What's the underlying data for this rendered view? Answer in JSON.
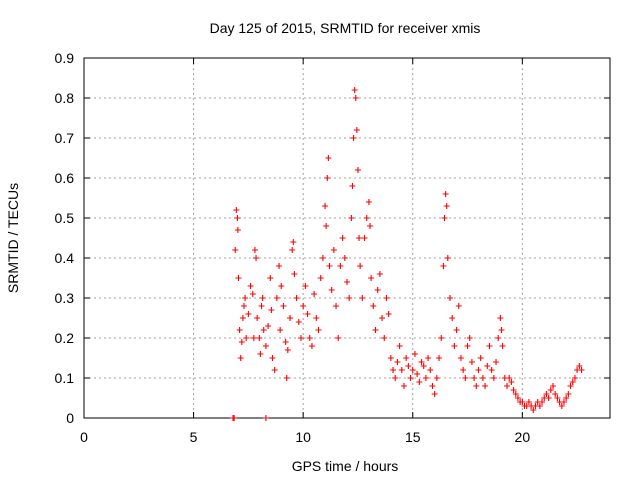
{
  "chart_data": {
    "type": "scatter",
    "title": "Day 125 of 2015, SRMTID for receiver xmis",
    "xlabel": "GPS time / hours",
    "ylabel": "SRMTID / TECUs",
    "xlim": [
      0,
      24
    ],
    "ylim": [
      0,
      0.9
    ],
    "xticks": [
      0,
      5,
      10,
      15,
      20
    ],
    "xtick_labels": [
      "0",
      "5",
      "10",
      "15",
      "20"
    ],
    "yticks": [
      0,
      0.1,
      0.2,
      0.3,
      0.4,
      0.5,
      0.6,
      0.7,
      0.8,
      0.9
    ],
    "ytick_labels": [
      "0",
      "0.1",
      "0.2",
      "0.3",
      "0.4",
      "0.5",
      "0.6",
      "0.7",
      "0.8",
      "0.9"
    ],
    "grid": true,
    "marker": "+",
    "series_color": "#ff0000",
    "series": [
      {
        "name": "xmis",
        "points": [
          [
            6.8,
            0.0
          ],
          [
            6.85,
            0.0
          ],
          [
            8.3,
            0.0
          ],
          [
            6.9,
            0.42
          ],
          [
            6.95,
            0.52
          ],
          [
            7.0,
            0.5
          ],
          [
            7.02,
            0.47
          ],
          [
            7.05,
            0.35
          ],
          [
            7.1,
            0.22
          ],
          [
            7.15,
            0.15
          ],
          [
            7.2,
            0.19
          ],
          [
            7.25,
            0.25
          ],
          [
            7.3,
            0.28
          ],
          [
            7.35,
            0.3
          ],
          [
            7.4,
            0.2
          ],
          [
            7.5,
            0.26
          ],
          [
            7.6,
            0.33
          ],
          [
            7.7,
            0.31
          ],
          [
            7.75,
            0.2
          ],
          [
            7.8,
            0.42
          ],
          [
            7.85,
            0.4
          ],
          [
            7.9,
            0.25
          ],
          [
            8.0,
            0.2
          ],
          [
            8.05,
            0.16
          ],
          [
            8.1,
            0.28
          ],
          [
            8.15,
            0.3
          ],
          [
            8.2,
            0.22
          ],
          [
            8.3,
            0.18
          ],
          [
            8.4,
            0.23
          ],
          [
            8.5,
            0.35
          ],
          [
            8.55,
            0.27
          ],
          [
            8.6,
            0.15
          ],
          [
            8.7,
            0.12
          ],
          [
            8.8,
            0.3
          ],
          [
            8.9,
            0.38
          ],
          [
            8.95,
            0.22
          ],
          [
            9.0,
            0.33
          ],
          [
            9.1,
            0.28
          ],
          [
            9.2,
            0.19
          ],
          [
            9.25,
            0.1
          ],
          [
            9.3,
            0.17
          ],
          [
            9.4,
            0.25
          ],
          [
            9.5,
            0.42
          ],
          [
            9.55,
            0.44
          ],
          [
            9.6,
            0.36
          ],
          [
            9.7,
            0.3
          ],
          [
            9.8,
            0.24
          ],
          [
            9.9,
            0.2
          ],
          [
            10.0,
            0.28
          ],
          [
            10.1,
            0.33
          ],
          [
            10.2,
            0.26
          ],
          [
            10.3,
            0.2
          ],
          [
            10.4,
            0.18
          ],
          [
            10.5,
            0.31
          ],
          [
            10.6,
            0.25
          ],
          [
            10.7,
            0.22
          ],
          [
            10.8,
            0.35
          ],
          [
            10.9,
            0.4
          ],
          [
            11.0,
            0.53
          ],
          [
            11.05,
            0.48
          ],
          [
            11.1,
            0.6
          ],
          [
            11.15,
            0.65
          ],
          [
            11.2,
            0.38
          ],
          [
            11.3,
            0.32
          ],
          [
            11.4,
            0.42
          ],
          [
            11.5,
            0.28
          ],
          [
            11.6,
            0.2
          ],
          [
            11.7,
            0.38
          ],
          [
            11.8,
            0.45
          ],
          [
            11.9,
            0.4
          ],
          [
            12.0,
            0.34
          ],
          [
            12.1,
            0.3
          ],
          [
            12.2,
            0.5
          ],
          [
            12.25,
            0.58
          ],
          [
            12.3,
            0.7
          ],
          [
            12.35,
            0.82
          ],
          [
            12.4,
            0.8
          ],
          [
            12.45,
            0.72
          ],
          [
            12.5,
            0.62
          ],
          [
            12.55,
            0.45
          ],
          [
            12.6,
            0.38
          ],
          [
            12.7,
            0.3
          ],
          [
            12.8,
            0.45
          ],
          [
            12.9,
            0.5
          ],
          [
            13.0,
            0.54
          ],
          [
            13.05,
            0.48
          ],
          [
            13.1,
            0.35
          ],
          [
            13.2,
            0.28
          ],
          [
            13.3,
            0.22
          ],
          [
            13.4,
            0.32
          ],
          [
            13.5,
            0.36
          ],
          [
            13.6,
            0.25
          ],
          [
            13.7,
            0.2
          ],
          [
            13.8,
            0.3
          ],
          [
            13.9,
            0.26
          ],
          [
            14.0,
            0.15
          ],
          [
            14.1,
            0.12
          ],
          [
            14.2,
            0.1
          ],
          [
            14.3,
            0.14
          ],
          [
            14.4,
            0.18
          ],
          [
            14.5,
            0.12
          ],
          [
            14.6,
            0.08
          ],
          [
            14.7,
            0.15
          ],
          [
            14.8,
            0.13
          ],
          [
            14.9,
            0.1
          ],
          [
            15.0,
            0.12
          ],
          [
            15.1,
            0.16
          ],
          [
            15.2,
            0.11
          ],
          [
            15.3,
            0.09
          ],
          [
            15.4,
            0.14
          ],
          [
            15.5,
            0.13
          ],
          [
            15.6,
            0.1
          ],
          [
            15.7,
            0.15
          ],
          [
            15.8,
            0.12
          ],
          [
            15.9,
            0.08
          ],
          [
            16.0,
            0.06
          ],
          [
            16.1,
            0.1
          ],
          [
            16.2,
            0.15
          ],
          [
            16.3,
            0.2
          ],
          [
            16.4,
            0.38
          ],
          [
            16.45,
            0.5
          ],
          [
            16.5,
            0.56
          ],
          [
            16.55,
            0.53
          ],
          [
            16.6,
            0.4
          ],
          [
            16.7,
            0.3
          ],
          [
            16.8,
            0.25
          ],
          [
            16.9,
            0.18
          ],
          [
            17.0,
            0.22
          ],
          [
            17.1,
            0.28
          ],
          [
            17.2,
            0.15
          ],
          [
            17.3,
            0.12
          ],
          [
            17.4,
            0.1
          ],
          [
            17.5,
            0.18
          ],
          [
            17.6,
            0.2
          ],
          [
            17.7,
            0.14
          ],
          [
            17.8,
            0.1
          ],
          [
            17.9,
            0.08
          ],
          [
            18.0,
            0.12
          ],
          [
            18.1,
            0.15
          ],
          [
            18.2,
            0.1
          ],
          [
            18.3,
            0.08
          ],
          [
            18.4,
            0.13
          ],
          [
            18.5,
            0.18
          ],
          [
            18.6,
            0.12
          ],
          [
            18.7,
            0.1
          ],
          [
            18.8,
            0.14
          ],
          [
            18.9,
            0.2
          ],
          [
            19.0,
            0.25
          ],
          [
            19.05,
            0.22
          ],
          [
            19.1,
            0.18
          ],
          [
            19.2,
            0.1
          ],
          [
            19.3,
            0.08
          ],
          [
            19.4,
            0.1
          ],
          [
            19.5,
            0.09
          ],
          [
            19.6,
            0.07
          ],
          [
            19.7,
            0.06
          ],
          [
            19.8,
            0.05
          ],
          [
            19.9,
            0.04
          ],
          [
            20.0,
            0.04
          ],
          [
            20.1,
            0.03
          ],
          [
            20.2,
            0.03
          ],
          [
            20.3,
            0.04
          ],
          [
            20.4,
            0.03
          ],
          [
            20.5,
            0.02
          ],
          [
            20.6,
            0.03
          ],
          [
            20.7,
            0.04
          ],
          [
            20.8,
            0.03
          ],
          [
            20.9,
            0.04
          ],
          [
            21.0,
            0.05
          ],
          [
            21.1,
            0.06
          ],
          [
            21.2,
            0.05
          ],
          [
            21.3,
            0.07
          ],
          [
            21.4,
            0.08
          ],
          [
            21.5,
            0.06
          ],
          [
            21.6,
            0.05
          ],
          [
            21.7,
            0.04
          ],
          [
            21.8,
            0.03
          ],
          [
            21.9,
            0.04
          ],
          [
            22.0,
            0.05
          ],
          [
            22.1,
            0.06
          ],
          [
            22.2,
            0.08
          ],
          [
            22.3,
            0.09
          ],
          [
            22.4,
            0.1
          ],
          [
            22.5,
            0.12
          ],
          [
            22.6,
            0.13
          ],
          [
            22.7,
            0.12
          ]
        ]
      }
    ]
  }
}
